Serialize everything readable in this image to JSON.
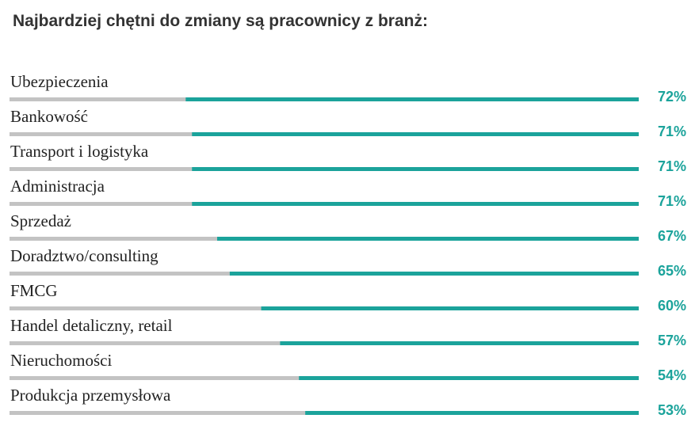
{
  "chart_data": {
    "type": "bar",
    "orientation": "horizontal",
    "title": "Najbardziej chętni do zmiany są pracownicy z branż:",
    "categories": [
      "Ubezpieczenia",
      "Bankowość",
      "Transport i logistyka",
      "Administracja",
      "Sprzedaż",
      "Doradztwo/consulting",
      "FMCG",
      "Handel detaliczny,  retail",
      "Nieruchomości",
      "Produkcja przemysłowa"
    ],
    "values": [
      72,
      71,
      71,
      71,
      67,
      65,
      60,
      57,
      54,
      53
    ],
    "value_labels": [
      "72%",
      "71%",
      "71%",
      "71%",
      "67%",
      "65%",
      "60%",
      "57%",
      "54%",
      "53%"
    ],
    "xlim": [
      0,
      100
    ],
    "color": "#1ba39b",
    "track_color": "#c3c3c3"
  }
}
